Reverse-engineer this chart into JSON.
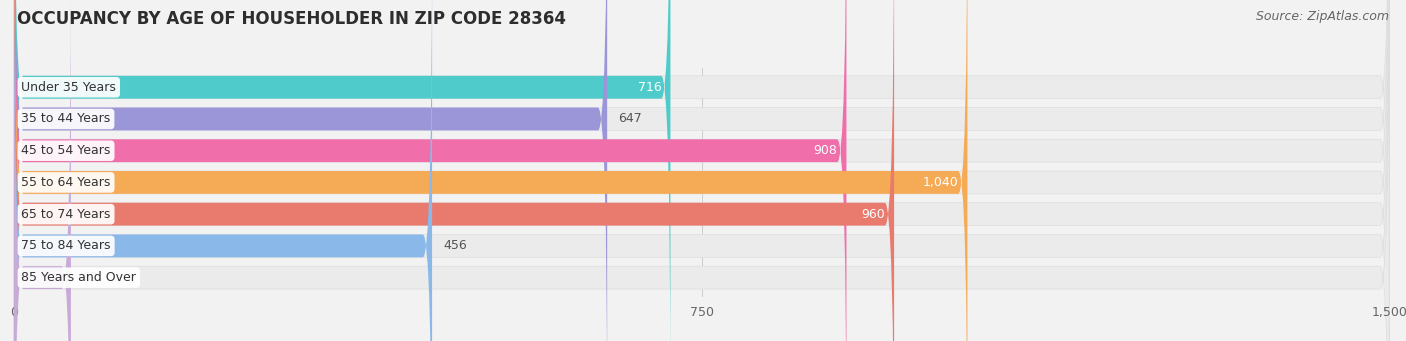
{
  "title": "OCCUPANCY BY AGE OF HOUSEHOLDER IN ZIP CODE 28364",
  "source": "Source: ZipAtlas.com",
  "categories": [
    "Under 35 Years",
    "35 to 44 Years",
    "45 to 54 Years",
    "55 to 64 Years",
    "65 to 74 Years",
    "75 to 84 Years",
    "85 Years and Over"
  ],
  "values": [
    716,
    647,
    908,
    1040,
    960,
    456,
    62
  ],
  "bar_colors": [
    "#4ecbca",
    "#9b96d8",
    "#f06eaa",
    "#f5aa55",
    "#e87b6e",
    "#8ab8e8",
    "#c8aad8"
  ],
  "xlim": [
    0,
    1500
  ],
  "xticks": [
    0,
    750,
    1500
  ],
  "background_color": "#f2f2f2",
  "bar_bg_color": "#ebebeb",
  "title_fontsize": 12,
  "source_fontsize": 9,
  "label_fontsize": 9,
  "value_fontsize": 9,
  "bar_height": 0.72,
  "fig_width": 14.06,
  "fig_height": 3.41
}
